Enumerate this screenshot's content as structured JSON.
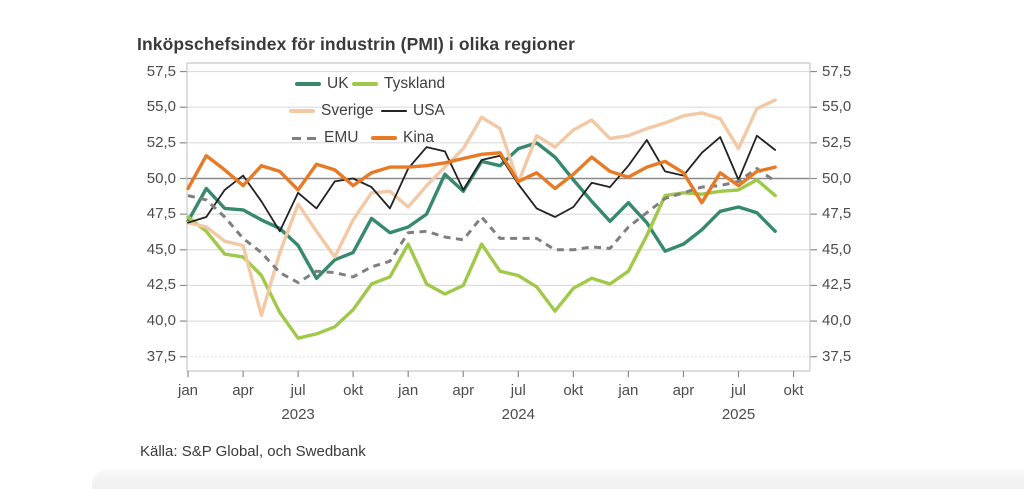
{
  "title": "Inköpschefsindex för industrin (PMI) i olika regioner",
  "source": "Källa: S&P Global, och Swedbank",
  "colors": {
    "uk": "#36886f",
    "tyskland": "#a0c94a",
    "sverige": "#f3c9a5",
    "usa": "#222222",
    "emu": "#7f7f7f",
    "kina": "#e87a26",
    "gridline": "#dcdcdc",
    "reference_line": "#8a8a8a",
    "axis_border": "#c8c8c8",
    "tick_text": "#4c4c4c"
  },
  "chart_data": {
    "type": "line",
    "title": "Inköpschefsindex för industrin (PMI) i olika regioner",
    "xlabel": "",
    "ylabel": "",
    "ylim": [
      36.5,
      58.1
    ],
    "grid": true,
    "reference_line": 50.0,
    "legend_position": "top-center-inside",
    "x": [
      "2023-01",
      "2023-02",
      "2023-03",
      "2023-04",
      "2023-05",
      "2023-06",
      "2023-07",
      "2023-08",
      "2023-09",
      "2023-10",
      "2023-11",
      "2023-12",
      "2024-01",
      "2024-02",
      "2024-03",
      "2024-04",
      "2024-05",
      "2024-06",
      "2024-07",
      "2024-08",
      "2024-09",
      "2024-10",
      "2024-11",
      "2024-12",
      "2025-01",
      "2025-02",
      "2025-03",
      "2025-04",
      "2025-05",
      "2025-06",
      "2025-07",
      "2025-08",
      "2025-09"
    ],
    "x_ticks": [
      {
        "index": 0,
        "label": "jan"
      },
      {
        "index": 3,
        "label": "apr"
      },
      {
        "index": 6,
        "label": "jul"
      },
      {
        "index": 9,
        "label": "okt"
      },
      {
        "index": 12,
        "label": "jan"
      },
      {
        "index": 15,
        "label": "apr"
      },
      {
        "index": 18,
        "label": "jul"
      },
      {
        "index": 21,
        "label": "okt"
      },
      {
        "index": 24,
        "label": "jan"
      },
      {
        "index": 27,
        "label": "apr"
      },
      {
        "index": 30,
        "label": "jul"
      },
      {
        "index": 33,
        "label": "okt"
      }
    ],
    "year_labels": [
      {
        "index": 6,
        "label": "2023"
      },
      {
        "index": 18,
        "label": "2024"
      },
      {
        "index": 30,
        "label": "2025"
      }
    ],
    "y_ticks": [
      {
        "value": 57.5,
        "label": "57,5"
      },
      {
        "value": 55.0,
        "label": "55,0"
      },
      {
        "value": 52.5,
        "label": "52,5"
      },
      {
        "value": 50.0,
        "label": "50,0"
      },
      {
        "value": 47.5,
        "label": "47,5"
      },
      {
        "value": 45.0,
        "label": "45,0"
      },
      {
        "value": 42.5,
        "label": "42,5"
      },
      {
        "value": 40.0,
        "label": "40,0"
      },
      {
        "value": 37.5,
        "label": "37,5"
      }
    ],
    "series": [
      {
        "name": "UK",
        "color": "#36886f",
        "dash": false,
        "width": 3.4,
        "values": [
          47.0,
          49.3,
          47.9,
          47.8,
          47.1,
          46.5,
          45.3,
          43.0,
          44.3,
          44.8,
          47.2,
          46.2,
          46.6,
          47.5,
          50.3,
          49.1,
          51.2,
          50.9,
          52.1,
          52.5,
          51.5,
          49.9,
          48.4,
          47.0,
          48.3,
          46.9,
          44.9,
          45.4,
          46.4,
          47.7,
          48.0,
          47.6,
          46.3
        ]
      },
      {
        "name": "Tyskland",
        "color": "#a0c94a",
        "dash": false,
        "width": 3.4,
        "values": [
          47.3,
          46.3,
          44.7,
          44.5,
          43.2,
          40.6,
          38.8,
          39.1,
          39.6,
          40.8,
          42.6,
          43.1,
          45.4,
          42.6,
          41.9,
          42.5,
          45.4,
          43.5,
          43.2,
          42.4,
          40.7,
          42.3,
          43.0,
          42.6,
          43.5,
          46.0,
          48.8,
          49.0,
          48.9,
          49.1,
          49.2,
          49.9,
          48.8
        ]
      },
      {
        "name": "Sverige",
        "color": "#f3c9a5",
        "dash": false,
        "width": 3.4,
        "values": [
          46.9,
          46.6,
          45.6,
          45.3,
          40.4,
          44.8,
          48.2,
          46.3,
          44.5,
          47.1,
          49.0,
          49.1,
          48.0,
          49.5,
          50.8,
          52.1,
          54.3,
          53.5,
          49.7,
          53.0,
          52.2,
          53.4,
          54.1,
          52.8,
          53.0,
          53.5,
          53.9,
          54.4,
          54.6,
          54.2,
          52.1,
          54.9,
          55.5
        ]
      },
      {
        "name": "USA",
        "color": "#222222",
        "dash": false,
        "width": 1.8,
        "values": [
          46.9,
          47.3,
          49.2,
          50.2,
          48.4,
          46.3,
          49.0,
          47.9,
          49.8,
          50.0,
          49.4,
          47.9,
          50.7,
          52.2,
          51.9,
          49.2,
          51.3,
          51.6,
          49.6,
          47.9,
          47.3,
          48.0,
          49.7,
          49.4,
          50.9,
          52.7,
          50.5,
          50.2,
          51.8,
          52.9,
          49.9,
          53.0,
          52.0
        ]
      },
      {
        "name": "EMU",
        "color": "#7f7f7f",
        "dash": true,
        "width": 3.0,
        "values": [
          48.8,
          48.5,
          47.3,
          45.8,
          44.8,
          43.4,
          42.7,
          43.5,
          43.4,
          43.1,
          43.8,
          44.2,
          46.2,
          46.3,
          45.9,
          45.7,
          47.3,
          45.8,
          45.8,
          45.8,
          45.0,
          45.0,
          45.2,
          45.1,
          46.6,
          47.6,
          48.6,
          49.0,
          49.4,
          49.5,
          49.8,
          50.7,
          49.8
        ]
      },
      {
        "name": "Kina",
        "color": "#e87a26",
        "dash": false,
        "width": 3.4,
        "values": [
          49.3,
          51.6,
          50.6,
          49.5,
          50.9,
          50.5,
          49.2,
          51.0,
          50.6,
          49.5,
          50.4,
          50.8,
          50.8,
          50.9,
          51.1,
          51.4,
          51.7,
          51.8,
          49.8,
          50.4,
          49.3,
          50.3,
          51.5,
          50.5,
          50.1,
          50.8,
          51.2,
          50.4,
          48.3,
          50.4,
          49.5,
          50.5,
          50.8
        ]
      }
    ]
  }
}
